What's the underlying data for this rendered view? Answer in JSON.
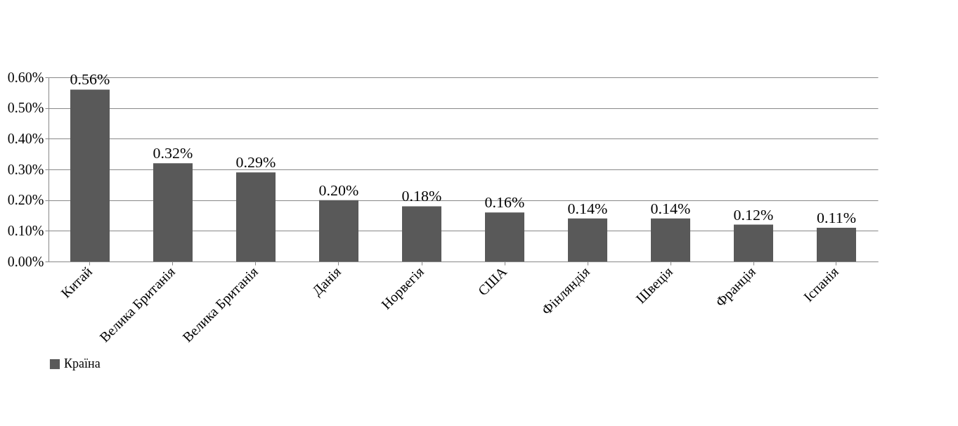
{
  "chart_data": {
    "type": "bar",
    "categories": [
      "Китай",
      "Велика Британія",
      "Велика Британія",
      "Данія",
      "Норвегія",
      "США",
      "Фінляндія",
      "Швеція",
      "Франція",
      "Іспанія"
    ],
    "series": [
      {
        "name": "Країна",
        "color": "#595959",
        "values": [
          0.56,
          0.32,
          0.29,
          0.2,
          0.18,
          0.16,
          0.14,
          0.14,
          0.12,
          0.11
        ]
      }
    ],
    "value_labels": [
      "0.56%",
      "0.32%",
      "0.29%",
      "0.20%",
      "0.18%",
      "0.16%",
      "0.14%",
      "0.14%",
      "0.12%",
      "0.11%"
    ],
    "ylim": [
      0,
      0.6
    ],
    "yticks": [
      {
        "value": 0,
        "label": "0.00%"
      },
      {
        "value": 0.1,
        "label": "0.10%"
      },
      {
        "value": 0.2,
        "label": "0.20%"
      },
      {
        "value": 0.3,
        "label": "0.30%"
      },
      {
        "value": 0.4,
        "label": "0.40%"
      },
      {
        "value": 0.5,
        "label": "0.50%"
      },
      {
        "value": 0.6,
        "label": "0.60%"
      }
    ],
    "grid": "y",
    "legend": "bottom"
  }
}
